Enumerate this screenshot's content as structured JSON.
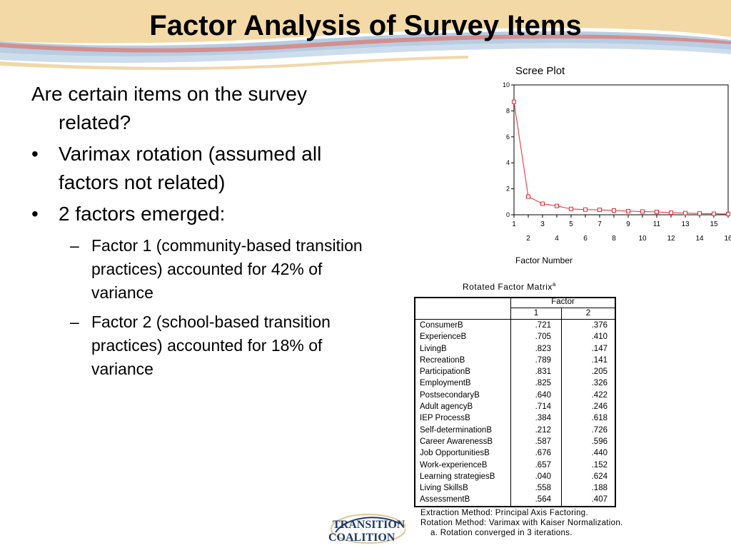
{
  "slide": {
    "title": "Factor Analysis of Survey Items",
    "intro": "Are certain items on the survey related?",
    "bullets": [
      "Varimax rotation (assumed all factors not related)",
      "2 factors emerged:"
    ],
    "sub_bullets": [
      "Factor 1 (community-based transition practices) accounted for 42% of variance",
      "Factor 2 (school-based transition practices) accounted for 18% of variance"
    ],
    "bullet_glyph": "•",
    "dash_glyph": "–"
  },
  "chart_data": {
    "type": "line",
    "title": "Scree Plot",
    "xlabel": "Factor Number",
    "ylabel": "",
    "x": [
      1,
      2,
      3,
      4,
      5,
      6,
      7,
      8,
      9,
      10,
      11,
      12,
      13,
      14,
      15,
      16
    ],
    "y": [
      8.7,
      1.4,
      0.85,
      0.68,
      0.45,
      0.4,
      0.38,
      0.33,
      0.28,
      0.25,
      0.22,
      0.16,
      0.13,
      0.1,
      0.08,
      0.06
    ],
    "xlim": [
      1,
      16
    ],
    "ylim": [
      0,
      10
    ],
    "yticks": [
      0,
      2,
      4,
      6,
      8,
      10
    ],
    "xticks_top": [
      1,
      3,
      5,
      7,
      9,
      11,
      13,
      15
    ],
    "xticks_bottom": [
      2,
      4,
      6,
      8,
      10,
      12,
      14,
      16
    ],
    "line_color": "#e8262c",
    "marker": "hollow-square",
    "grid": false
  },
  "matrix": {
    "title": "Rotated Factor Matrix",
    "title_sup": "a",
    "factor_header": "Factor",
    "col_headers": [
      "1",
      "2"
    ],
    "rows": [
      {
        "item": "ConsumerB",
        "f1": ".721",
        "f2": ".376"
      },
      {
        "item": "ExperienceB",
        "f1": ".705",
        "f2": ".410"
      },
      {
        "item": "LivingB",
        "f1": ".823",
        "f2": ".147"
      },
      {
        "item": "RecreationB",
        "f1": ".789",
        "f2": ".141"
      },
      {
        "item": "ParticipationB",
        "f1": ".831",
        "f2": ".205"
      },
      {
        "item": "EmploymentB",
        "f1": ".825",
        "f2": ".326"
      },
      {
        "item": "PostsecondaryB",
        "f1": ".640",
        "f2": ".422"
      },
      {
        "item": "Adult agencyB",
        "f1": ".714",
        "f2": ".246"
      },
      {
        "item": "IEP ProcessB",
        "f1": ".384",
        "f2": ".618"
      },
      {
        "item": "Self-determinationB",
        "f1": ".212",
        "f2": ".726"
      },
      {
        "item": "Career AwarenessB",
        "f1": ".587",
        "f2": ".596"
      },
      {
        "item": "Job OpportunitiesB",
        "f1": ".676",
        "f2": ".440"
      },
      {
        "item": "Work-experienceB",
        "f1": ".657",
        "f2": ".152"
      },
      {
        "item": "Learning strategiesB",
        "f1": ".040",
        "f2": ".624"
      },
      {
        "item": "Living SkillsB",
        "f1": ".558",
        "f2": ".188"
      },
      {
        "item": "AssessmentB",
        "f1": ".564",
        "f2": ".407"
      }
    ],
    "extraction_note": "Extraction Method: Principal Axis Factoring.",
    "rotation_note": "Rotation Method: Varimax with Kaiser Normalization.",
    "footnote_mark": "a.",
    "footnote": "Rotation converged in 3 iterations."
  },
  "logo": {
    "line1": "TRANSITION",
    "line2": "COALITION"
  },
  "colors": {
    "banner_tan": "#f3d9a6",
    "banner_blue": "#b7cde3",
    "banner_red": "#d9827f",
    "logo_navy": "#1f3a6b",
    "logo_gold": "#c9a24a"
  }
}
